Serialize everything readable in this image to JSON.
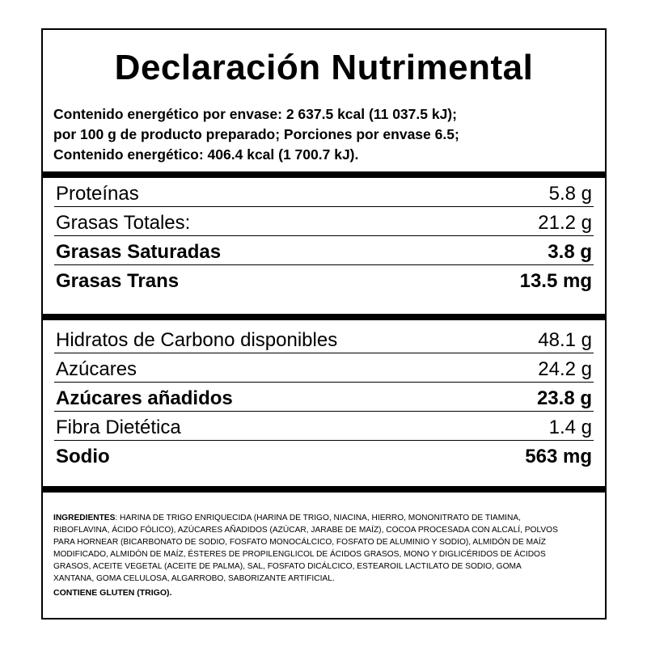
{
  "title": "Declaración Nutrimental",
  "energy_lines": [
    "Contenido energético por envase: 2 637.5 kcal (11 037.5 kJ);",
    "por 100 g de producto preparado; Porciones por envase 6.5;",
    "Contenido energético: 406.4 kcal (1 700.7 kJ)."
  ],
  "section1": [
    {
      "label": "Proteínas",
      "value": "5.8 g",
      "bold": false
    },
    {
      "label": "Grasas Totales:",
      "value": "21.2 g",
      "bold": false
    },
    {
      "label": "Grasas Saturadas",
      "value": "3.8 g",
      "bold": true
    },
    {
      "label": "Grasas Trans",
      "value": "13.5 mg",
      "bold": true
    }
  ],
  "section2": [
    {
      "label": "Hidratos de Carbono disponibles",
      "value": "48.1 g",
      "bold": false
    },
    {
      "label": "Azúcares",
      "value": "24.2 g",
      "bold": false
    },
    {
      "label": "Azúcares añadidos",
      "value": "23.8 g",
      "bold": true
    },
    {
      "label": "Fibra Dietética",
      "value": "1.4 g",
      "bold": false
    },
    {
      "label": "Sodio",
      "value": "563 mg",
      "bold": true
    }
  ],
  "ingredients": {
    "label": "INGREDIENTES",
    "lines": [
      ": HARINA DE TRIGO ENRIQUECIDA (HARINA DE TRIGO, NIACINA, HIERRO, MONONITRATO DE TIAMINA,",
      "RIBOFLAVINA, ÁCIDO FÓLICO), AZÚCARES AÑADIDOS (AZÚCAR, JARABE DE MAÍZ), COCOA PROCESADA CON ALCALÍ, POLVOS",
      "PARA HORNEAR (BICARBONATO DE SODIO, FOSFATO MONOCÁLCICO, FOSFATO DE ALUMINIO Y SODIO), ALMIDÓN DE MAÍZ",
      "MODIFICADO, ALMIDÓN DE MAÍZ, ÉSTERES DE PROPILENGLICOL DE ÁCIDOS GRASOS, MONO Y DIGLICÉRIDOS DE ÁCIDOS",
      "GRASOS, ACEITE VEGETAL (ACEITE DE PALMA), SAL, FOSFATO DICÁLCICO, ESTEAROIL LACTILATO DE SODIO, GOMA",
      "XANTANA, GOMA CELULOSA, ALGARROBO, SABORIZANTE ARTIFICIAL."
    ]
  },
  "allergen": "CONTIENE GLUTEN (TRIGO)."
}
